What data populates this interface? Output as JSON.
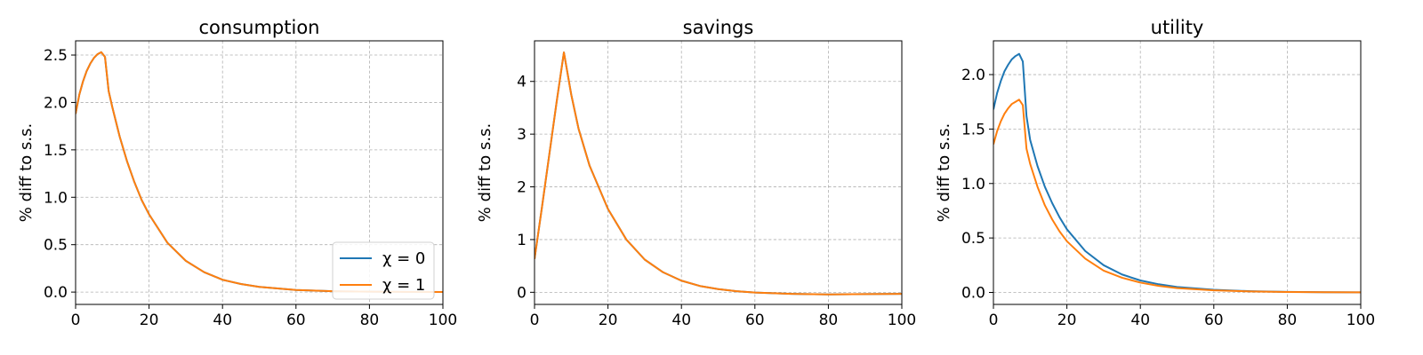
{
  "chart_data": [
    {
      "type": "line",
      "title": "consumption",
      "xlabel": "",
      "ylabel": "% diff to s.s.",
      "xlim": [
        0,
        100
      ],
      "ylim": [
        -0.13,
        2.65
      ],
      "xticks": [
        0,
        20,
        40,
        60,
        80,
        100
      ],
      "yticks": [
        0.0,
        0.5,
        1.0,
        1.5,
        2.0,
        2.5
      ],
      "ytick_labels": [
        "0.0",
        "0.5",
        "1.0",
        "1.5",
        "2.0",
        "2.5"
      ],
      "grid": true,
      "legend": {
        "placement": "lower-right",
        "entries": [
          "χ = 0",
          "χ = 1"
        ]
      },
      "series": [
        {
          "name": "χ = 0",
          "color": "#1f77b4",
          "x": [
            0,
            1,
            2,
            3,
            4,
            5,
            6,
            7,
            8,
            9,
            10,
            12,
            14,
            16,
            18,
            20,
            25,
            30,
            35,
            40,
            45,
            50,
            60,
            70,
            80,
            90,
            100
          ],
          "y": [
            1.88,
            2.08,
            2.22,
            2.33,
            2.41,
            2.47,
            2.51,
            2.53,
            2.48,
            2.12,
            1.95,
            1.64,
            1.38,
            1.16,
            0.97,
            0.82,
            0.52,
            0.33,
            0.21,
            0.13,
            0.085,
            0.055,
            0.022,
            0.009,
            0.004,
            0.002,
            0.001
          ]
        },
        {
          "name": "χ = 1",
          "color": "#ff7f0e",
          "x": [
            0,
            1,
            2,
            3,
            4,
            5,
            6,
            7,
            8,
            9,
            10,
            12,
            14,
            16,
            18,
            20,
            25,
            30,
            35,
            40,
            45,
            50,
            60,
            70,
            80,
            90,
            100
          ],
          "y": [
            1.88,
            2.08,
            2.22,
            2.33,
            2.41,
            2.47,
            2.51,
            2.53,
            2.48,
            2.12,
            1.95,
            1.64,
            1.38,
            1.16,
            0.97,
            0.82,
            0.52,
            0.33,
            0.21,
            0.13,
            0.085,
            0.055,
            0.022,
            0.009,
            0.004,
            0.002,
            0.001
          ]
        }
      ]
    },
    {
      "type": "line",
      "title": "savings",
      "xlabel": "",
      "ylabel": "% diff to s.s.",
      "xlim": [
        0,
        100
      ],
      "ylim": [
        -0.23,
        4.77
      ],
      "xticks": [
        0,
        20,
        40,
        60,
        80,
        100
      ],
      "yticks": [
        0,
        1,
        2,
        3,
        4
      ],
      "ytick_labels": [
        "0",
        "1",
        "2",
        "3",
        "4"
      ],
      "grid": true,
      "legend": null,
      "series": [
        {
          "name": "",
          "color": "#1f77b4",
          "x": [
            0,
            2,
            4,
            6,
            8,
            10,
            12,
            15,
            20,
            25,
            30,
            35,
            40,
            45,
            50,
            55,
            60,
            70,
            80,
            90,
            100
          ],
          "y": [
            0.63,
            1.6,
            2.6,
            3.6,
            4.55,
            3.75,
            3.1,
            2.4,
            1.58,
            1.0,
            0.62,
            0.38,
            0.22,
            0.12,
            0.06,
            0.02,
            -0.005,
            -0.03,
            -0.04,
            -0.035,
            -0.03
          ]
        },
        {
          "name": "",
          "color": "#ff7f0e",
          "x": [
            0,
            2,
            4,
            6,
            8,
            10,
            12,
            15,
            20,
            25,
            30,
            35,
            40,
            45,
            50,
            55,
            60,
            70,
            80,
            90,
            100
          ],
          "y": [
            0.63,
            1.6,
            2.6,
            3.6,
            4.55,
            3.75,
            3.1,
            2.4,
            1.58,
            1.0,
            0.62,
            0.38,
            0.22,
            0.12,
            0.06,
            0.02,
            -0.005,
            -0.03,
            -0.04,
            -0.035,
            -0.03
          ]
        }
      ]
    },
    {
      "type": "line",
      "title": "utility",
      "xlabel": "",
      "ylabel": "% diff to s.s.",
      "xlim": [
        0,
        100
      ],
      "ylim": [
        -0.11,
        2.31
      ],
      "xticks": [
        0,
        20,
        40,
        60,
        80,
        100
      ],
      "yticks": [
        0.0,
        0.5,
        1.0,
        1.5,
        2.0
      ],
      "ytick_labels": [
        "0.0",
        "0.5",
        "1.0",
        "1.5",
        "2.0"
      ],
      "grid": true,
      "legend": null,
      "series": [
        {
          "name": "",
          "color": "#1f77b4",
          "x": [
            0,
            1,
            2,
            3,
            4,
            5,
            6,
            7,
            8,
            9,
            10,
            12,
            14,
            16,
            18,
            20,
            25,
            30,
            35,
            40,
            45,
            50,
            60,
            70,
            80,
            90,
            100
          ],
          "y": [
            1.68,
            1.83,
            1.94,
            2.03,
            2.09,
            2.14,
            2.17,
            2.19,
            2.12,
            1.62,
            1.4,
            1.16,
            0.97,
            0.82,
            0.69,
            0.58,
            0.38,
            0.25,
            0.165,
            0.11,
            0.075,
            0.05,
            0.024,
            0.011,
            0.005,
            0.002,
            0.001
          ]
        },
        {
          "name": "",
          "color": "#ff7f0e",
          "x": [
            0,
            1,
            2,
            3,
            4,
            5,
            6,
            7,
            8,
            9,
            10,
            12,
            14,
            16,
            18,
            20,
            25,
            30,
            35,
            40,
            45,
            50,
            60,
            70,
            80,
            90,
            100
          ],
          "y": [
            1.36,
            1.48,
            1.57,
            1.64,
            1.69,
            1.73,
            1.75,
            1.77,
            1.72,
            1.32,
            1.18,
            0.97,
            0.8,
            0.67,
            0.56,
            0.47,
            0.31,
            0.2,
            0.135,
            0.09,
            0.06,
            0.04,
            0.019,
            0.009,
            0.004,
            0.002,
            0.001
          ]
        }
      ]
    }
  ]
}
